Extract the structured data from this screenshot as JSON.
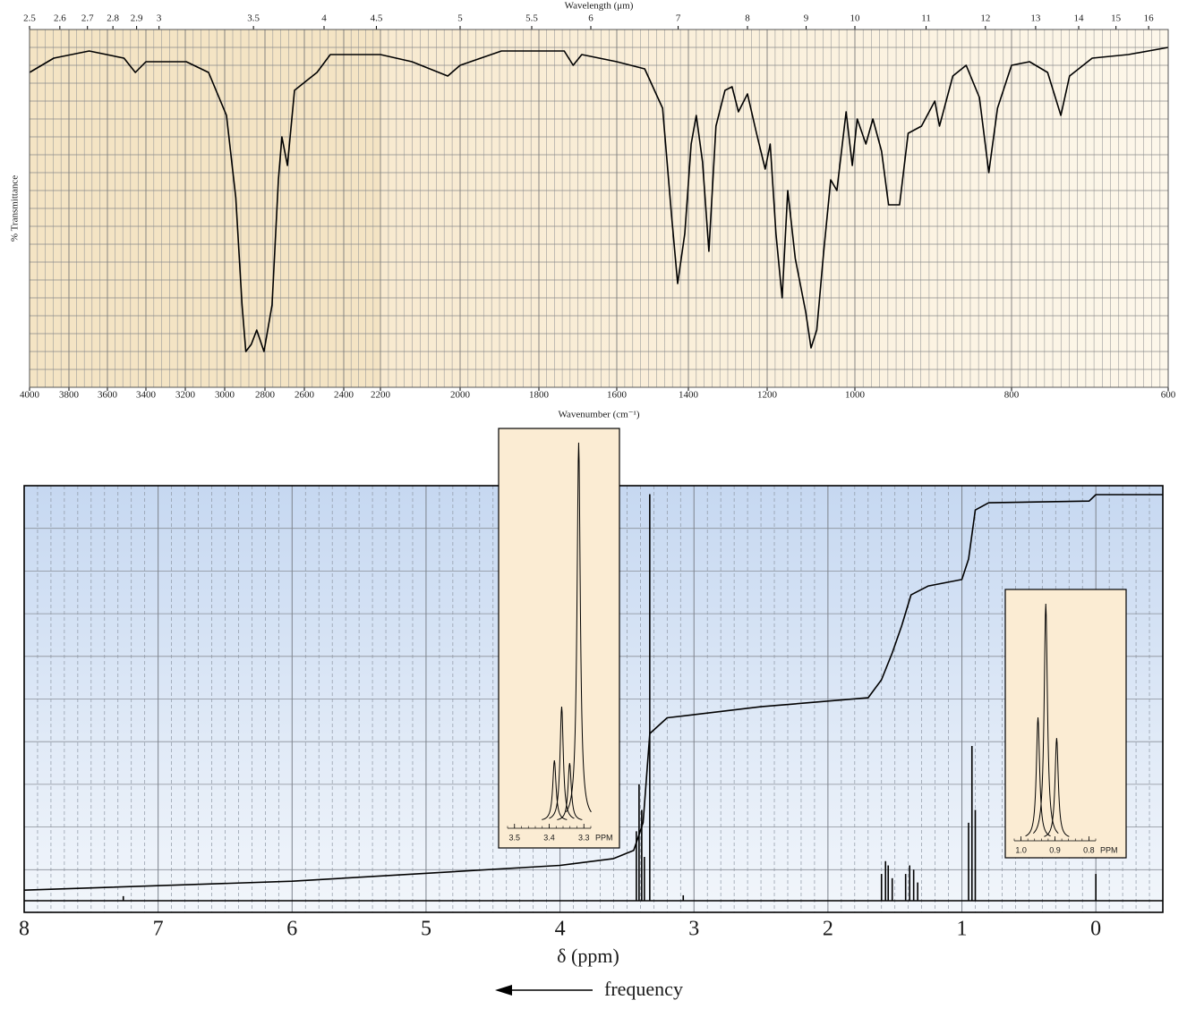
{
  "chart_data": [
    {
      "type": "line",
      "x_label": "Wavenumber (cm⁻¹)",
      "x2_label": "Wavelength (μm)",
      "y_label": "% Transmittance",
      "color": "#000000",
      "grid": true,
      "xlim": [
        4000,
        600
      ],
      "ylim": [
        0,
        100
      ],
      "xticks": [
        4000,
        3800,
        3600,
        3400,
        3200,
        3000,
        2800,
        2600,
        2400,
        2200,
        2000,
        1800,
        1600,
        1400,
        1200,
        1000,
        800,
        600
      ],
      "x2ticks": [
        2.5,
        2.6,
        2.7,
        2.8,
        2.9,
        3,
        3.5,
        4,
        4.5,
        5,
        5.5,
        6,
        7,
        8,
        9,
        10,
        11,
        12,
        13,
        14,
        15,
        16
      ],
      "x": [
        4000,
        3877,
        3695,
        3514,
        3455,
        3400,
        3195,
        3082,
        2991,
        2945,
        2914,
        2895,
        2868,
        2841,
        2805,
        2764,
        2732,
        2714,
        2686,
        2650,
        2582,
        2536,
        2468,
        2332,
        2200,
        2121,
        2031,
        2000,
        1895,
        1803,
        1735,
        1712,
        1690,
        1600,
        1522,
        1472,
        1447,
        1430,
        1410,
        1393,
        1380,
        1364,
        1348,
        1330,
        1307,
        1289,
        1273,
        1250,
        1227,
        1205,
        1193,
        1180,
        1166,
        1153,
        1136,
        1112,
        1100,
        1087,
        1071,
        1055,
        1041,
        1020,
        1006,
        997,
        986,
        977,
        966,
        957,
        943,
        932,
        915,
        898,
        892,
        875,
        858,
        841,
        829,
        818,
        800,
        777,
        754,
        737,
        726,
        697,
        651,
        600
      ],
      "values": [
        88,
        92,
        94,
        92,
        88,
        91,
        91,
        88,
        76,
        53,
        23,
        10,
        12,
        16,
        10,
        23,
        58,
        70,
        62,
        83,
        86,
        88,
        93,
        93,
        93,
        91,
        87,
        90,
        94,
        94,
        94,
        90,
        93,
        91,
        89,
        78,
        48,
        29,
        43,
        68,
        76,
        63,
        38,
        73,
        83,
        84,
        77,
        82,
        71,
        61,
        68,
        43,
        25,
        55,
        36,
        21,
        11,
        16,
        38,
        58,
        55,
        77,
        62,
        75,
        68,
        75,
        66,
        51,
        51,
        71,
        73,
        80,
        73,
        87,
        90,
        81,
        60,
        78,
        90,
        91,
        88,
        76,
        87,
        92,
        93,
        95
      ]
    },
    {
      "type": "spectrum",
      "x_label": "δ (ppm)",
      "annotation": "frequency",
      "color": "#000000",
      "grid": true,
      "xlim": [
        8,
        -0.5
      ],
      "ylim": [
        0,
        100
      ],
      "xticks": [
        8,
        7,
        6,
        5,
        4,
        3,
        2,
        1,
        0
      ],
      "x": [
        7.26,
        3.43,
        3.41,
        3.39,
        3.37,
        3.33,
        3.08,
        1.6,
        1.57,
        1.55,
        1.52,
        1.42,
        1.39,
        1.36,
        1.33,
        0.95,
        0.925,
        0.9,
        0
      ],
      "values": [
        3.8,
        19,
        30,
        24,
        13,
        98,
        4,
        9,
        12,
        11,
        8,
        9,
        11,
        10,
        7,
        21,
        39,
        24,
        9
      ],
      "integral": {
        "x": [
          8,
          6,
          4,
          3.6,
          3.45,
          3.38,
          3.33,
          3.2,
          2.5,
          1.7,
          1.6,
          1.52,
          1.45,
          1.38,
          1.25,
          1,
          0.95,
          0.9,
          0.8,
          0.05,
          0,
          -0.5
        ],
        "values": [
          5.2,
          7.3,
          11,
          12.6,
          14.5,
          21,
          41.9,
          45.6,
          48.2,
          50.3,
          54.5,
          60.8,
          67.1,
          74.4,
          76.5,
          78,
          82.8,
          94.3,
          96,
          96.4,
          97.9,
          97.9
        ]
      }
    },
    {
      "type": "spectrum",
      "x_label": "PPM",
      "color": "#000000",
      "xlim": [
        3.52,
        3.28
      ],
      "ylim": [
        0,
        100
      ],
      "xticks": [
        3.5,
        3.4,
        3.3
      ],
      "x": [
        3.385,
        3.364,
        3.341,
        3.315
      ],
      "values": [
        15.5,
        29.2,
        14.8,
        96.6
      ]
    },
    {
      "type": "spectrum",
      "x_label": "PPM",
      "color": "#000000",
      "xlim": [
        1.02,
        0.78
      ],
      "ylim": [
        0,
        100
      ],
      "xticks": [
        {
          "value": 1,
          "label": "1.0"
        },
        0.9,
        0.8
      ],
      "x": [
        0.95,
        0.927,
        0.895
      ],
      "values": [
        48.9,
        94.6,
        40.6
      ]
    }
  ]
}
